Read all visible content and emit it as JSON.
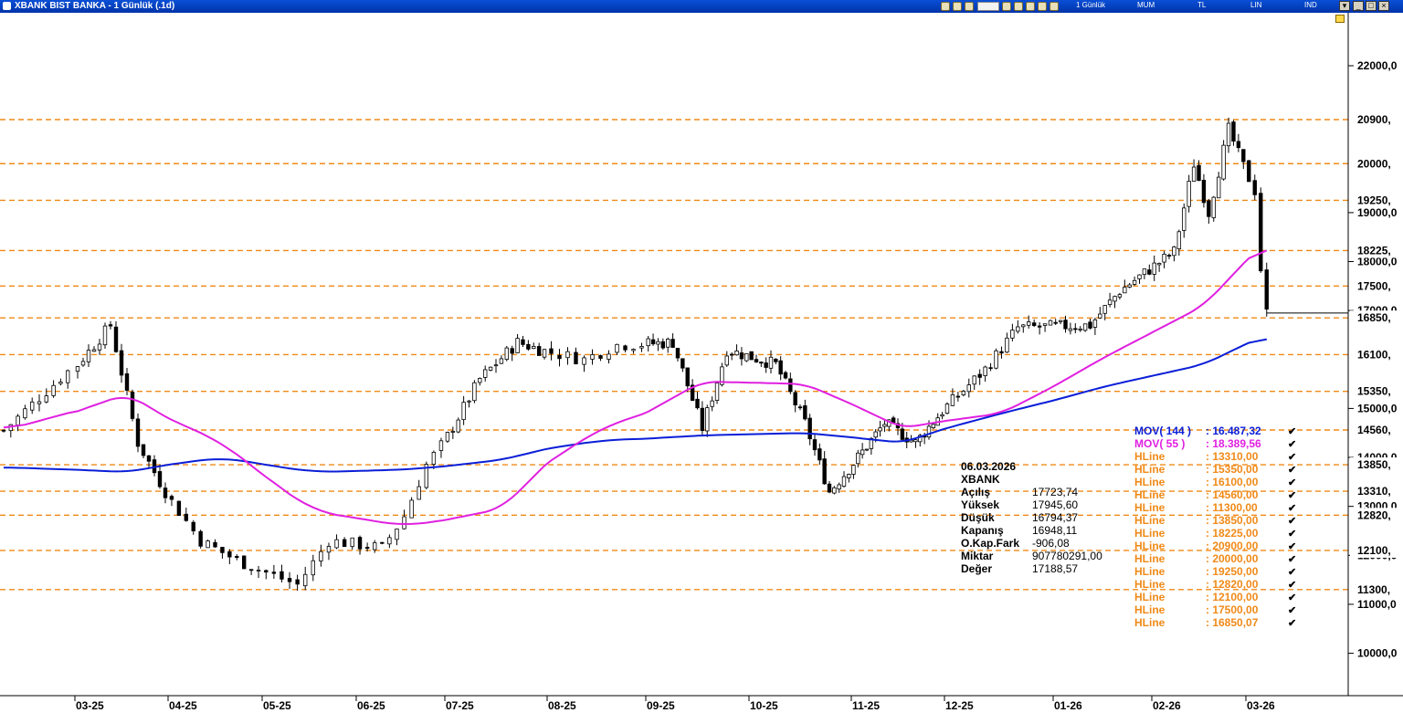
{
  "window": {
    "title": "XBANK BIST BANKA - 1 Günlük (.1d)",
    "toolbar": {
      "period": "1 Günlük",
      "chart_style": "MUM",
      "currency": "TL",
      "scale": "LIN",
      "ind": "IND"
    }
  },
  "info_panel": {
    "date": "06.03.2026",
    "symbol": "XBANK",
    "rows": [
      {
        "label": "Açılış",
        "value": "17723,74"
      },
      {
        "label": "Yüksek",
        "value": "17945,60"
      },
      {
        "label": "Düşük",
        "value": "16794,37"
      },
      {
        "label": "Kapanış",
        "value": "16948,11"
      },
      {
        "label": "O.Kap.Fark",
        "value": "-906,08"
      },
      {
        "label": "Miktar",
        "value": "907780291,00"
      },
      {
        "label": "Değer",
        "value": "17188,57"
      }
    ]
  },
  "legend": [
    {
      "name": "MOV( 144 )",
      "value": ": 16.487,32",
      "color": "#0a1ed8"
    },
    {
      "name": "MOV( 55 )",
      "value": ": 18.389,56",
      "color": "#e020e0"
    },
    {
      "name": "HLine",
      "value": ": 13310,00",
      "color": "#f08a18"
    },
    {
      "name": "HLine",
      "value": ": 15350,00",
      "color": "#f08a18"
    },
    {
      "name": "HLine",
      "value": ": 16100,00",
      "color": "#f08a18"
    },
    {
      "name": "HLine",
      "value": ": 14560,00",
      "color": "#f08a18"
    },
    {
      "name": "HLine",
      "value": ": 11300,00",
      "color": "#f08a18"
    },
    {
      "name": "HLine",
      "value": ": 13850,00",
      "color": "#f08a18"
    },
    {
      "name": "HLine",
      "value": ": 18225,00",
      "color": "#f08a18"
    },
    {
      "name": "HLine",
      "value": ": 20900,00",
      "color": "#f08a18"
    },
    {
      "name": "HLine",
      "value": ": 20000,00",
      "color": "#f08a18"
    },
    {
      "name": "HLine",
      "value": ": 19250,00",
      "color": "#f08a18"
    },
    {
      "name": "HLine",
      "value": ": 12820,00",
      "color": "#f08a18"
    },
    {
      "name": "HLine",
      "value": ": 12100,00",
      "color": "#f08a18"
    },
    {
      "name": "HLine",
      "value": ": 17500,00",
      "color": "#f08a18"
    },
    {
      "name": "HLine",
      "value": ": 16850,07",
      "color": "#f08a18"
    }
  ],
  "colors": {
    "hline": "#f08a18",
    "mov144": "#0a1ed8",
    "mov55": "#e020e0",
    "candle": "#000000"
  },
  "chart_data": {
    "type": "candlestick",
    "title": "XBANK BIST BANKA - 1 Günlük (.1d)",
    "y_scale": "linear",
    "ylim": [
      9000,
      23000
    ],
    "y_ticks": [
      10000,
      11000,
      12000,
      13000,
      14000,
      15000,
      17000,
      18000,
      19000,
      22000
    ],
    "y_tick_labels": [
      "10000,0",
      "11000,0",
      "12000,0",
      "13000,0",
      "14000,0",
      "15000,0",
      "17000,0",
      "18000,0",
      "19000,0",
      "22000,0"
    ],
    "x_month_labels": [
      "03-25",
      "04-25",
      "05-25",
      "06-25",
      "07-25",
      "08-25",
      "09-25",
      "10-25",
      "11-25",
      "12-25",
      "01-26",
      "02-26",
      "03-26"
    ],
    "month_days": [
      17,
      13,
      12,
      12,
      19,
      12,
      21,
      21,
      21,
      20,
      20,
      19,
      4
    ],
    "hlines": [
      {
        "value": 20900,
        "label": "20900,"
      },
      {
        "value": 20000,
        "label": "20000,"
      },
      {
        "value": 19250,
        "label": "19250,"
      },
      {
        "value": 18225,
        "label": "18225,"
      },
      {
        "value": 17500,
        "label": "17500,"
      },
      {
        "value": 16850,
        "label": "16850,"
      },
      {
        "value": 16100,
        "label": "16100,"
      },
      {
        "value": 15350,
        "label": "15350,"
      },
      {
        "value": 14560,
        "label": "14560,"
      },
      {
        "value": 13850,
        "label": "13850,"
      },
      {
        "value": 13310,
        "label": "13310,"
      },
      {
        "value": 12820,
        "label": "12820,"
      },
      {
        "value": 12100,
        "label": "12100,"
      },
      {
        "value": 11300,
        "label": "11300,"
      }
    ],
    "last_close": 16948.11,
    "close_path": [
      {
        "month": "02-25",
        "close": 14550
      },
      {
        "month": "03-25",
        "close": 16700
      },
      {
        "month": "03-25",
        "close": 14300
      },
      {
        "month": "04-25",
        "close": 12300
      },
      {
        "month": "04-25",
        "close": 11900
      },
      {
        "month": "05-25",
        "close": 11400
      },
      {
        "month": "05-25",
        "close": 12300
      },
      {
        "month": "06-25",
        "close": 12150
      },
      {
        "month": "06-25",
        "close": 12800
      },
      {
        "month": "06-25",
        "close": 13850
      },
      {
        "month": "07-25",
        "close": 15600
      },
      {
        "month": "07-25",
        "close": 16350
      },
      {
        "month": "08-25",
        "close": 16000
      },
      {
        "month": "08-25",
        "close": 16300
      },
      {
        "month": "09-25",
        "close": 16350
      },
      {
        "month": "09-25",
        "close": 14600
      },
      {
        "month": "09-25",
        "close": 16200
      },
      {
        "month": "10-25",
        "close": 15900
      },
      {
        "month": "10-25",
        "close": 14700
      },
      {
        "month": "10-25",
        "close": 13300
      },
      {
        "month": "11-25",
        "close": 14700
      },
      {
        "month": "11-25",
        "close": 14300
      },
      {
        "month": "12-25",
        "close": 15800
      },
      {
        "month": "12-25",
        "close": 16650
      },
      {
        "month": "01-26",
        "close": 16700
      },
      {
        "month": "01-26",
        "close": 17400
      },
      {
        "month": "02-26",
        "close": 18200
      },
      {
        "month": "02-26",
        "close": 20000
      },
      {
        "month": "02-26",
        "close": 19000
      },
      {
        "month": "02-26",
        "close": 20700
      },
      {
        "month": "03-26",
        "close": 19450
      },
      {
        "month": "03-26",
        "close": 17850
      },
      {
        "month": "03-26",
        "close": 16948
      }
    ],
    "series": [
      {
        "name": "MOV( 144 )",
        "last_value": 16487.32,
        "path": [
          {
            "month": "02-25",
            "close": 13800
          },
          {
            "month": "03-25",
            "close": 13700
          },
          {
            "month": "04-25",
            "close": 14000
          },
          {
            "month": "05-25",
            "close": 13700
          },
          {
            "month": "06-25",
            "close": 13750
          },
          {
            "month": "07-25",
            "close": 13950
          },
          {
            "month": "08-25",
            "close": 14350
          },
          {
            "month": "09-25",
            "close": 14450
          },
          {
            "month": "10-25",
            "close": 14500
          },
          {
            "month": "11-25",
            "close": 14300
          },
          {
            "month": "12-25",
            "close": 14900
          },
          {
            "month": "01-26",
            "close": 15450
          },
          {
            "month": "02-26",
            "close": 15900
          },
          {
            "month": "03-26",
            "close": 16487
          }
        ]
      },
      {
        "name": "MOV( 55 )",
        "last_value": 18389.56,
        "path": [
          {
            "month": "02-25",
            "close": 14550
          },
          {
            "month": "03-25",
            "close": 15300
          },
          {
            "month": "04-25",
            "close": 14300
          },
          {
            "month": "05-25",
            "close": 12900
          },
          {
            "month": "06-25",
            "close": 12600
          },
          {
            "month": "07-25",
            "close": 12950
          },
          {
            "month": "08-25",
            "close": 14600
          },
          {
            "month": "09-25",
            "close": 15550
          },
          {
            "month": "10-25",
            "close": 15500
          },
          {
            "month": "11-25",
            "close": 14600
          },
          {
            "month": "12-25",
            "close": 14900
          },
          {
            "month": "01-26",
            "close": 16050
          },
          {
            "month": "02-26",
            "close": 17100
          },
          {
            "month": "03-26",
            "close": 18389
          }
        ]
      }
    ]
  }
}
